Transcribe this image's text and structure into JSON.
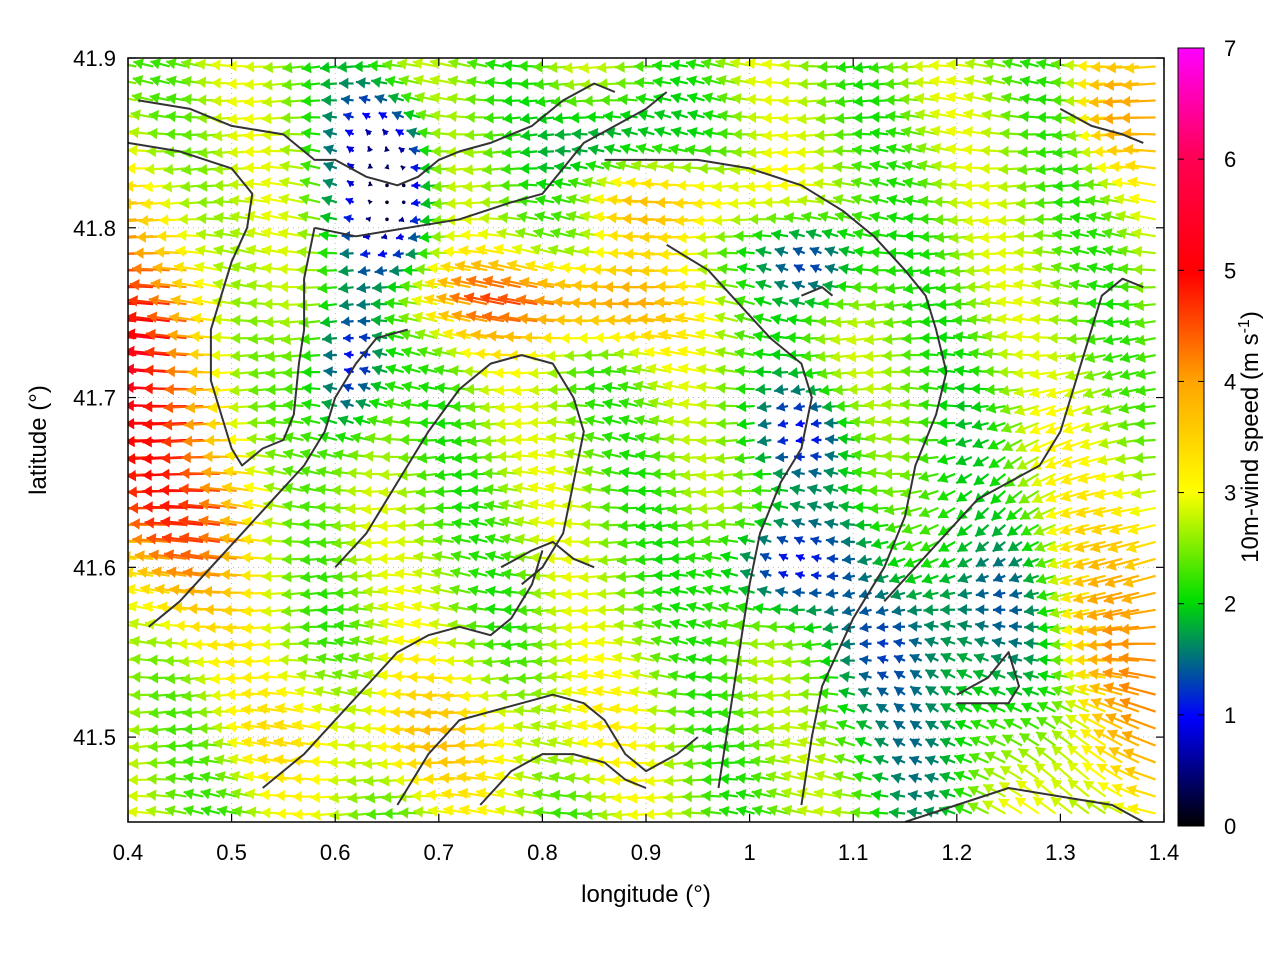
{
  "chart_data": {
    "type": "vector-field",
    "title": "",
    "xlabel": "longitude (°)",
    "ylabel": "latitude (°)",
    "xlim": [
      0.4,
      1.4
    ],
    "ylim": [
      41.45,
      41.9
    ],
    "x_ticks": [
      0.4,
      0.5,
      0.6,
      0.7,
      0.8,
      0.9,
      1.0,
      1.1,
      1.2,
      1.3,
      1.4
    ],
    "x_tick_labels": [
      "0.4",
      "0.5",
      "0.6",
      "0.7",
      "0.8",
      "0.9",
      "1",
      "1.1",
      "1.2",
      "1.3",
      "1.4"
    ],
    "y_ticks": [
      41.5,
      41.6,
      41.7,
      41.8,
      41.9
    ],
    "y_tick_labels": [
      "41.5",
      "41.6",
      "41.7",
      "41.8",
      "41.9"
    ],
    "grid": true,
    "colorbar": {
      "label_main": "10m-wind speed (m s",
      "label_sup": "-1",
      "label_end": ")",
      "range": [
        0,
        7
      ],
      "ticks": [
        0,
        1,
        2,
        3,
        4,
        5,
        6,
        7
      ],
      "tick_labels": [
        "0",
        "1",
        "2",
        "3",
        "4",
        "5",
        "6",
        "7"
      ],
      "colors": [
        "#000000",
        "#0000ff",
        "#00dd00",
        "#ffff00",
        "#ffa500",
        "#ff0000",
        "#ff00ff"
      ]
    },
    "contour_color": "#333333",
    "contours": [
      [
        [
          0.41,
          41.875
        ],
        [
          0.46,
          41.87
        ],
        [
          0.5,
          41.86
        ],
        [
          0.55,
          41.855
        ],
        [
          0.58,
          41.84
        ],
        [
          0.6,
          41.84
        ],
        [
          0.63,
          41.83
        ],
        [
          0.66,
          41.825
        ],
        [
          0.68,
          41.83
        ],
        [
          0.7,
          41.84
        ],
        [
          0.72,
          41.845
        ],
        [
          0.75,
          41.85
        ],
        [
          0.79,
          41.86
        ],
        [
          0.82,
          41.875
        ],
        [
          0.85,
          41.885
        ],
        [
          0.87,
          41.88
        ]
      ],
      [
        [
          0.4,
          41.85
        ],
        [
          0.45,
          41.845
        ],
        [
          0.5,
          41.835
        ],
        [
          0.52,
          41.82
        ],
        [
          0.515,
          41.8
        ],
        [
          0.5,
          41.78
        ],
        [
          0.49,
          41.76
        ],
        [
          0.48,
          41.74
        ],
        [
          0.48,
          41.71
        ],
        [
          0.49,
          41.69
        ],
        [
          0.5,
          41.67
        ],
        [
          0.51,
          41.66
        ],
        [
          0.53,
          41.67
        ],
        [
          0.55,
          41.675
        ],
        [
          0.56,
          41.69
        ],
        [
          0.565,
          41.72
        ],
        [
          0.57,
          41.74
        ],
        [
          0.57,
          41.77
        ],
        [
          0.58,
          41.8
        ]
      ],
      [
        [
          0.58,
          41.8
        ],
        [
          0.62,
          41.795
        ],
        [
          0.67,
          41.8
        ],
        [
          0.72,
          41.805
        ],
        [
          0.77,
          41.815
        ],
        [
          0.8,
          41.82
        ],
        [
          0.82,
          41.835
        ],
        [
          0.84,
          41.85
        ],
        [
          0.87,
          41.86
        ],
        [
          0.9,
          41.87
        ],
        [
          0.92,
          41.88
        ]
      ],
      [
        [
          0.86,
          41.84
        ],
        [
          0.9,
          41.84
        ],
        [
          0.95,
          41.84
        ],
        [
          1.0,
          41.835
        ],
        [
          1.05,
          41.825
        ],
        [
          1.09,
          41.81
        ],
        [
          1.12,
          41.795
        ],
        [
          1.15,
          41.775
        ],
        [
          1.17,
          41.76
        ],
        [
          1.18,
          41.74
        ],
        [
          1.19,
          41.715
        ],
        [
          1.18,
          41.69
        ],
        [
          1.16,
          41.66
        ],
        [
          1.15,
          41.63
        ],
        [
          1.13,
          41.6
        ],
        [
          1.1,
          41.57
        ],
        [
          1.07,
          41.53
        ],
        [
          1.06,
          41.5
        ],
        [
          1.05,
          41.46
        ]
      ],
      [
        [
          0.92,
          41.79
        ],
        [
          0.96,
          41.775
        ],
        [
          0.99,
          41.755
        ],
        [
          1.02,
          41.735
        ],
        [
          1.05,
          41.72
        ],
        [
          1.06,
          41.7
        ],
        [
          1.05,
          41.67
        ],
        [
          1.03,
          41.65
        ],
        [
          1.01,
          41.62
        ],
        [
          1.0,
          41.59
        ],
        [
          0.99,
          41.55
        ],
        [
          0.98,
          41.51
        ],
        [
          0.97,
          41.47
        ]
      ],
      [
        [
          0.6,
          41.6
        ],
        [
          0.63,
          41.62
        ],
        [
          0.66,
          41.65
        ],
        [
          0.69,
          41.68
        ],
        [
          0.72,
          41.705
        ],
        [
          0.75,
          41.72
        ],
        [
          0.78,
          41.725
        ],
        [
          0.81,
          41.72
        ],
        [
          0.83,
          41.7
        ],
        [
          0.84,
          41.68
        ],
        [
          0.83,
          41.65
        ],
        [
          0.82,
          41.62
        ],
        [
          0.8,
          41.6
        ],
        [
          0.78,
          41.59
        ]
      ],
      [
        [
          0.42,
          41.565
        ],
        [
          0.45,
          41.58
        ],
        [
          0.48,
          41.6
        ],
        [
          0.51,
          41.62
        ],
        [
          0.54,
          41.64
        ],
        [
          0.57,
          41.66
        ],
        [
          0.59,
          41.68
        ],
        [
          0.6,
          41.7
        ],
        [
          0.62,
          41.72
        ],
        [
          0.64,
          41.735
        ],
        [
          0.67,
          41.74
        ]
      ],
      [
        [
          0.53,
          41.47
        ],
        [
          0.57,
          41.49
        ],
        [
          0.6,
          41.51
        ],
        [
          0.63,
          41.53
        ],
        [
          0.66,
          41.55
        ],
        [
          0.69,
          41.56
        ],
        [
          0.72,
          41.565
        ],
        [
          0.75,
          41.56
        ],
        [
          0.77,
          41.57
        ],
        [
          0.79,
          41.59
        ],
        [
          0.8,
          41.61
        ]
      ],
      [
        [
          0.66,
          41.46
        ],
        [
          0.69,
          41.49
        ],
        [
          0.72,
          41.51
        ],
        [
          0.75,
          41.515
        ],
        [
          0.78,
          41.52
        ],
        [
          0.81,
          41.525
        ],
        [
          0.84,
          41.52
        ],
        [
          0.86,
          41.51
        ],
        [
          0.88,
          41.49
        ],
        [
          0.9,
          41.48
        ],
        [
          0.93,
          41.49
        ],
        [
          0.95,
          41.5
        ]
      ],
      [
        [
          0.74,
          41.46
        ],
        [
          0.77,
          41.48
        ],
        [
          0.8,
          41.49
        ],
        [
          0.83,
          41.49
        ],
        [
          0.86,
          41.485
        ],
        [
          0.88,
          41.475
        ],
        [
          0.9,
          41.47
        ]
      ],
      [
        [
          1.15,
          41.45
        ],
        [
          1.2,
          41.46
        ],
        [
          1.25,
          41.47
        ],
        [
          1.3,
          41.465
        ],
        [
          1.35,
          41.46
        ],
        [
          1.38,
          41.45
        ]
      ],
      [
        [
          1.13,
          41.58
        ],
        [
          1.16,
          41.6
        ],
        [
          1.19,
          41.62
        ],
        [
          1.22,
          41.64
        ],
        [
          1.25,
          41.65
        ],
        [
          1.28,
          41.66
        ],
        [
          1.3,
          41.68
        ],
        [
          1.31,
          41.7
        ],
        [
          1.32,
          41.72
        ],
        [
          1.33,
          41.74
        ],
        [
          1.34,
          41.76
        ],
        [
          1.36,
          41.77
        ],
        [
          1.38,
          41.765
        ]
      ],
      [
        [
          1.2,
          41.52
        ],
        [
          1.23,
          41.52
        ],
        [
          1.25,
          41.52
        ],
        [
          1.26,
          41.53
        ],
        [
          1.25,
          41.55
        ],
        [
          1.23,
          41.535
        ],
        [
          1.2,
          41.525
        ]
      ],
      [
        [
          1.3,
          41.87
        ],
        [
          1.33,
          41.86
        ],
        [
          1.36,
          41.855
        ],
        [
          1.38,
          41.85
        ]
      ],
      [
        [
          0.76,
          41.6
        ],
        [
          0.79,
          41.61
        ],
        [
          0.81,
          41.615
        ],
        [
          0.83,
          41.605
        ],
        [
          0.85,
          41.6
        ]
      ],
      [
        [
          1.05,
          41.76
        ],
        [
          1.07,
          41.765
        ],
        [
          1.08,
          41.76
        ]
      ]
    ],
    "wind_field": {
      "grid_nx": 62,
      "grid_ny": 45,
      "scale_deg_per_ms": 0.0055,
      "flow": "prevailing easterly (arrows point west), speed ~2–4.5 m/s, 5–6.5 m/s over the west edge and the band near 41.75°; weak 0–1.5 m/s patches near 0.62°–0.68°, 41.78°–41.88°; convergent flow south-east near 1.3°, 41.55°"
    }
  }
}
